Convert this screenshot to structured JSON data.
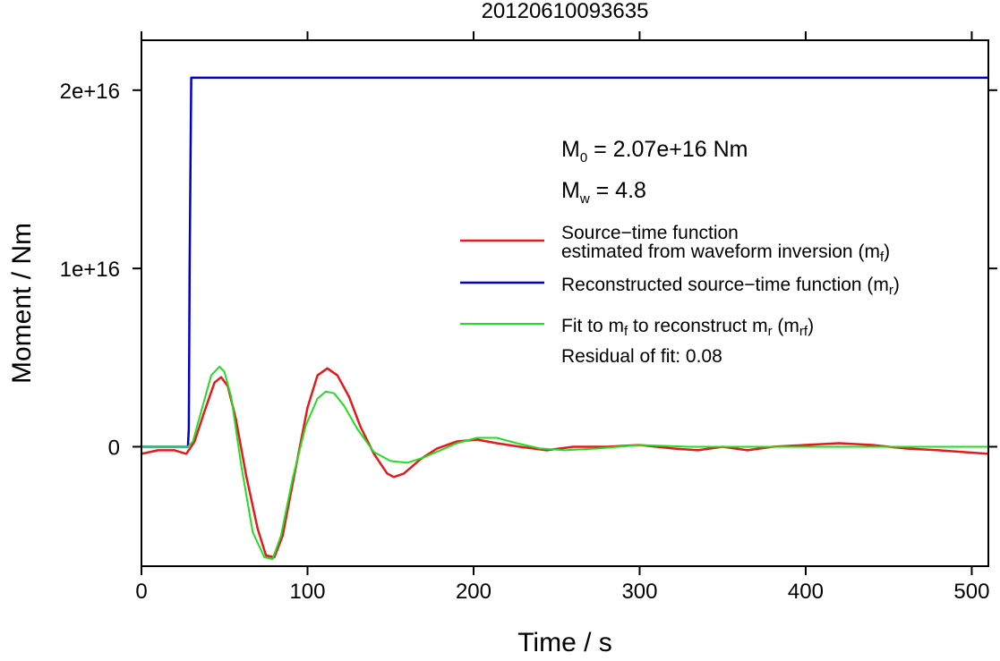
{
  "chart_data": {
    "type": "line",
    "title": "20120610093635",
    "xlabel": "Time / s",
    "ylabel": "Moment / Nm",
    "xlim": [
      0,
      510
    ],
    "ylim": [
      -6700000000000000.0,
      2.28e+16
    ],
    "xticks": [
      0,
      100,
      200,
      300,
      400,
      500
    ],
    "xtick_labels": [
      "0",
      "100",
      "200",
      "300",
      "400",
      "500"
    ],
    "yticks": [
      0,
      1e+16,
      2e+16
    ],
    "ytick_labels": [
      "0",
      "1e+16",
      "2e+16"
    ],
    "grid": false,
    "legend_position": "right",
    "annotations": {
      "m0_prefix": "M",
      "m0_sub": "0",
      "m0_text": " = 2.07e+16 Nm",
      "mw_prefix": "M",
      "mw_sub": "w",
      "mw_text": " = 4.8",
      "residual": "Residual of fit: 0.08"
    },
    "legend": [
      {
        "key": "mf",
        "color": "#e41a1c",
        "lines": [
          {
            "text": "Source−time function"
          },
          {
            "text": "estimated from waveform inversion (m",
            "sub": "f",
            "tail": ")"
          }
        ]
      },
      {
        "key": "mr",
        "color": "#0000cd",
        "lines": [
          {
            "text": "Reconstructed source−time function (m",
            "sub": "r",
            "tail": ")"
          }
        ]
      },
      {
        "key": "mrf",
        "color": "#22dd22",
        "lines": [
          {
            "text": "Fit to m",
            "sub": "f",
            "mid": " to reconstruct m",
            "sub2": "r",
            "mid2": " (m",
            "sub3": "rf",
            "tail": ")"
          }
        ]
      }
    ],
    "series": [
      {
        "key": "mr",
        "color": "#0000cd",
        "x": [
          0,
          28,
          28.5,
          29,
          30,
          510
        ],
        "y": [
          0,
          0,
          1000000000000000.0,
          1e+16,
          2.07e+16,
          2.07e+16
        ]
      },
      {
        "key": "mf",
        "color": "#e41a1c",
        "x": [
          0,
          10,
          20,
          27,
          32,
          38,
          44,
          48,
          52,
          57,
          63,
          70,
          75,
          80,
          85,
          92,
          100,
          106,
          112,
          118,
          125,
          132,
          140,
          148,
          152,
          158,
          168,
          178,
          190,
          202,
          214,
          228,
          244,
          260,
          280,
          300,
          320,
          335,
          350,
          365,
          380,
          400,
          420,
          440,
          460,
          480,
          495,
          510
        ],
        "y": [
          -400000000000000.0,
          -200000000000000.0,
          -200000000000000.0,
          -400000000000000.0,
          300000000000000.0,
          2000000000000000.0,
          3600000000000000.0,
          3900000000000000.0,
          3400000000000000.0,
          1500000000000000.0,
          -1600000000000000.0,
          -4600000000000000.0,
          -6100000000000000.0,
          -6200000000000000.0,
          -5000000000000000.0,
          -1600000000000000.0,
          2200000000000000.0,
          4000000000000000.0,
          4400000000000000.0,
          4000000000000000.0,
          2800000000000000.0,
          1100000000000000.0,
          -400000000000000.0,
          -1500000000000000.0,
          -1700000000000000.0,
          -1500000000000000.0,
          -700000000000000.0,
          -100000000000000.0,
          300000000000000.0,
          400000000000000.0,
          200000000000000.0,
          0,
          -200000000000000.0,
          0,
          0,
          100000000000000.0,
          -100000000000000.0,
          -200000000000000.0,
          0,
          -200000000000000.0,
          0,
          100000000000000.0,
          200000000000000.0,
          100000000000000.0,
          -100000000000000.0,
          -200000000000000.0,
          -300000000000000.0,
          -400000000000000.0
        ]
      },
      {
        "key": "mrf",
        "color": "#22dd22",
        "x": [
          0,
          28,
          31,
          36,
          42,
          47,
          50,
          54,
          60,
          67,
          74,
          79,
          84,
          91,
          99,
          106,
          111,
          116,
          122,
          130,
          140,
          150,
          160,
          170,
          180,
          190,
          202,
          214,
          226,
          240,
          255,
          275,
          300,
          330,
          380,
          440,
          510
        ],
        "y": [
          0,
          0,
          300000000000000.0,
          2000000000000000.0,
          4000000000000000.0,
          4500000000000000.0,
          4200000000000000.0,
          2800000000000000.0,
          -1000000000000000.0,
          -4800000000000000.0,
          -6200000000000000.0,
          -6300000000000000.0,
          -5000000000000000.0,
          -1800000000000000.0,
          1200000000000000.0,
          2700000000000000.0,
          3100000000000000.0,
          3000000000000000.0,
          2300000000000000.0,
          1000000000000000.0,
          -300000000000000.0,
          -800000000000000.0,
          -900000000000000.0,
          -600000000000000.0,
          -200000000000000.0,
          200000000000000.0,
          500000000000000.0,
          500000000000000.0,
          200000000000000.0,
          -100000000000000.0,
          -200000000000000.0,
          -100000000000000.0,
          100000000000000.0,
          0,
          0,
          0,
          0
        ]
      }
    ]
  }
}
